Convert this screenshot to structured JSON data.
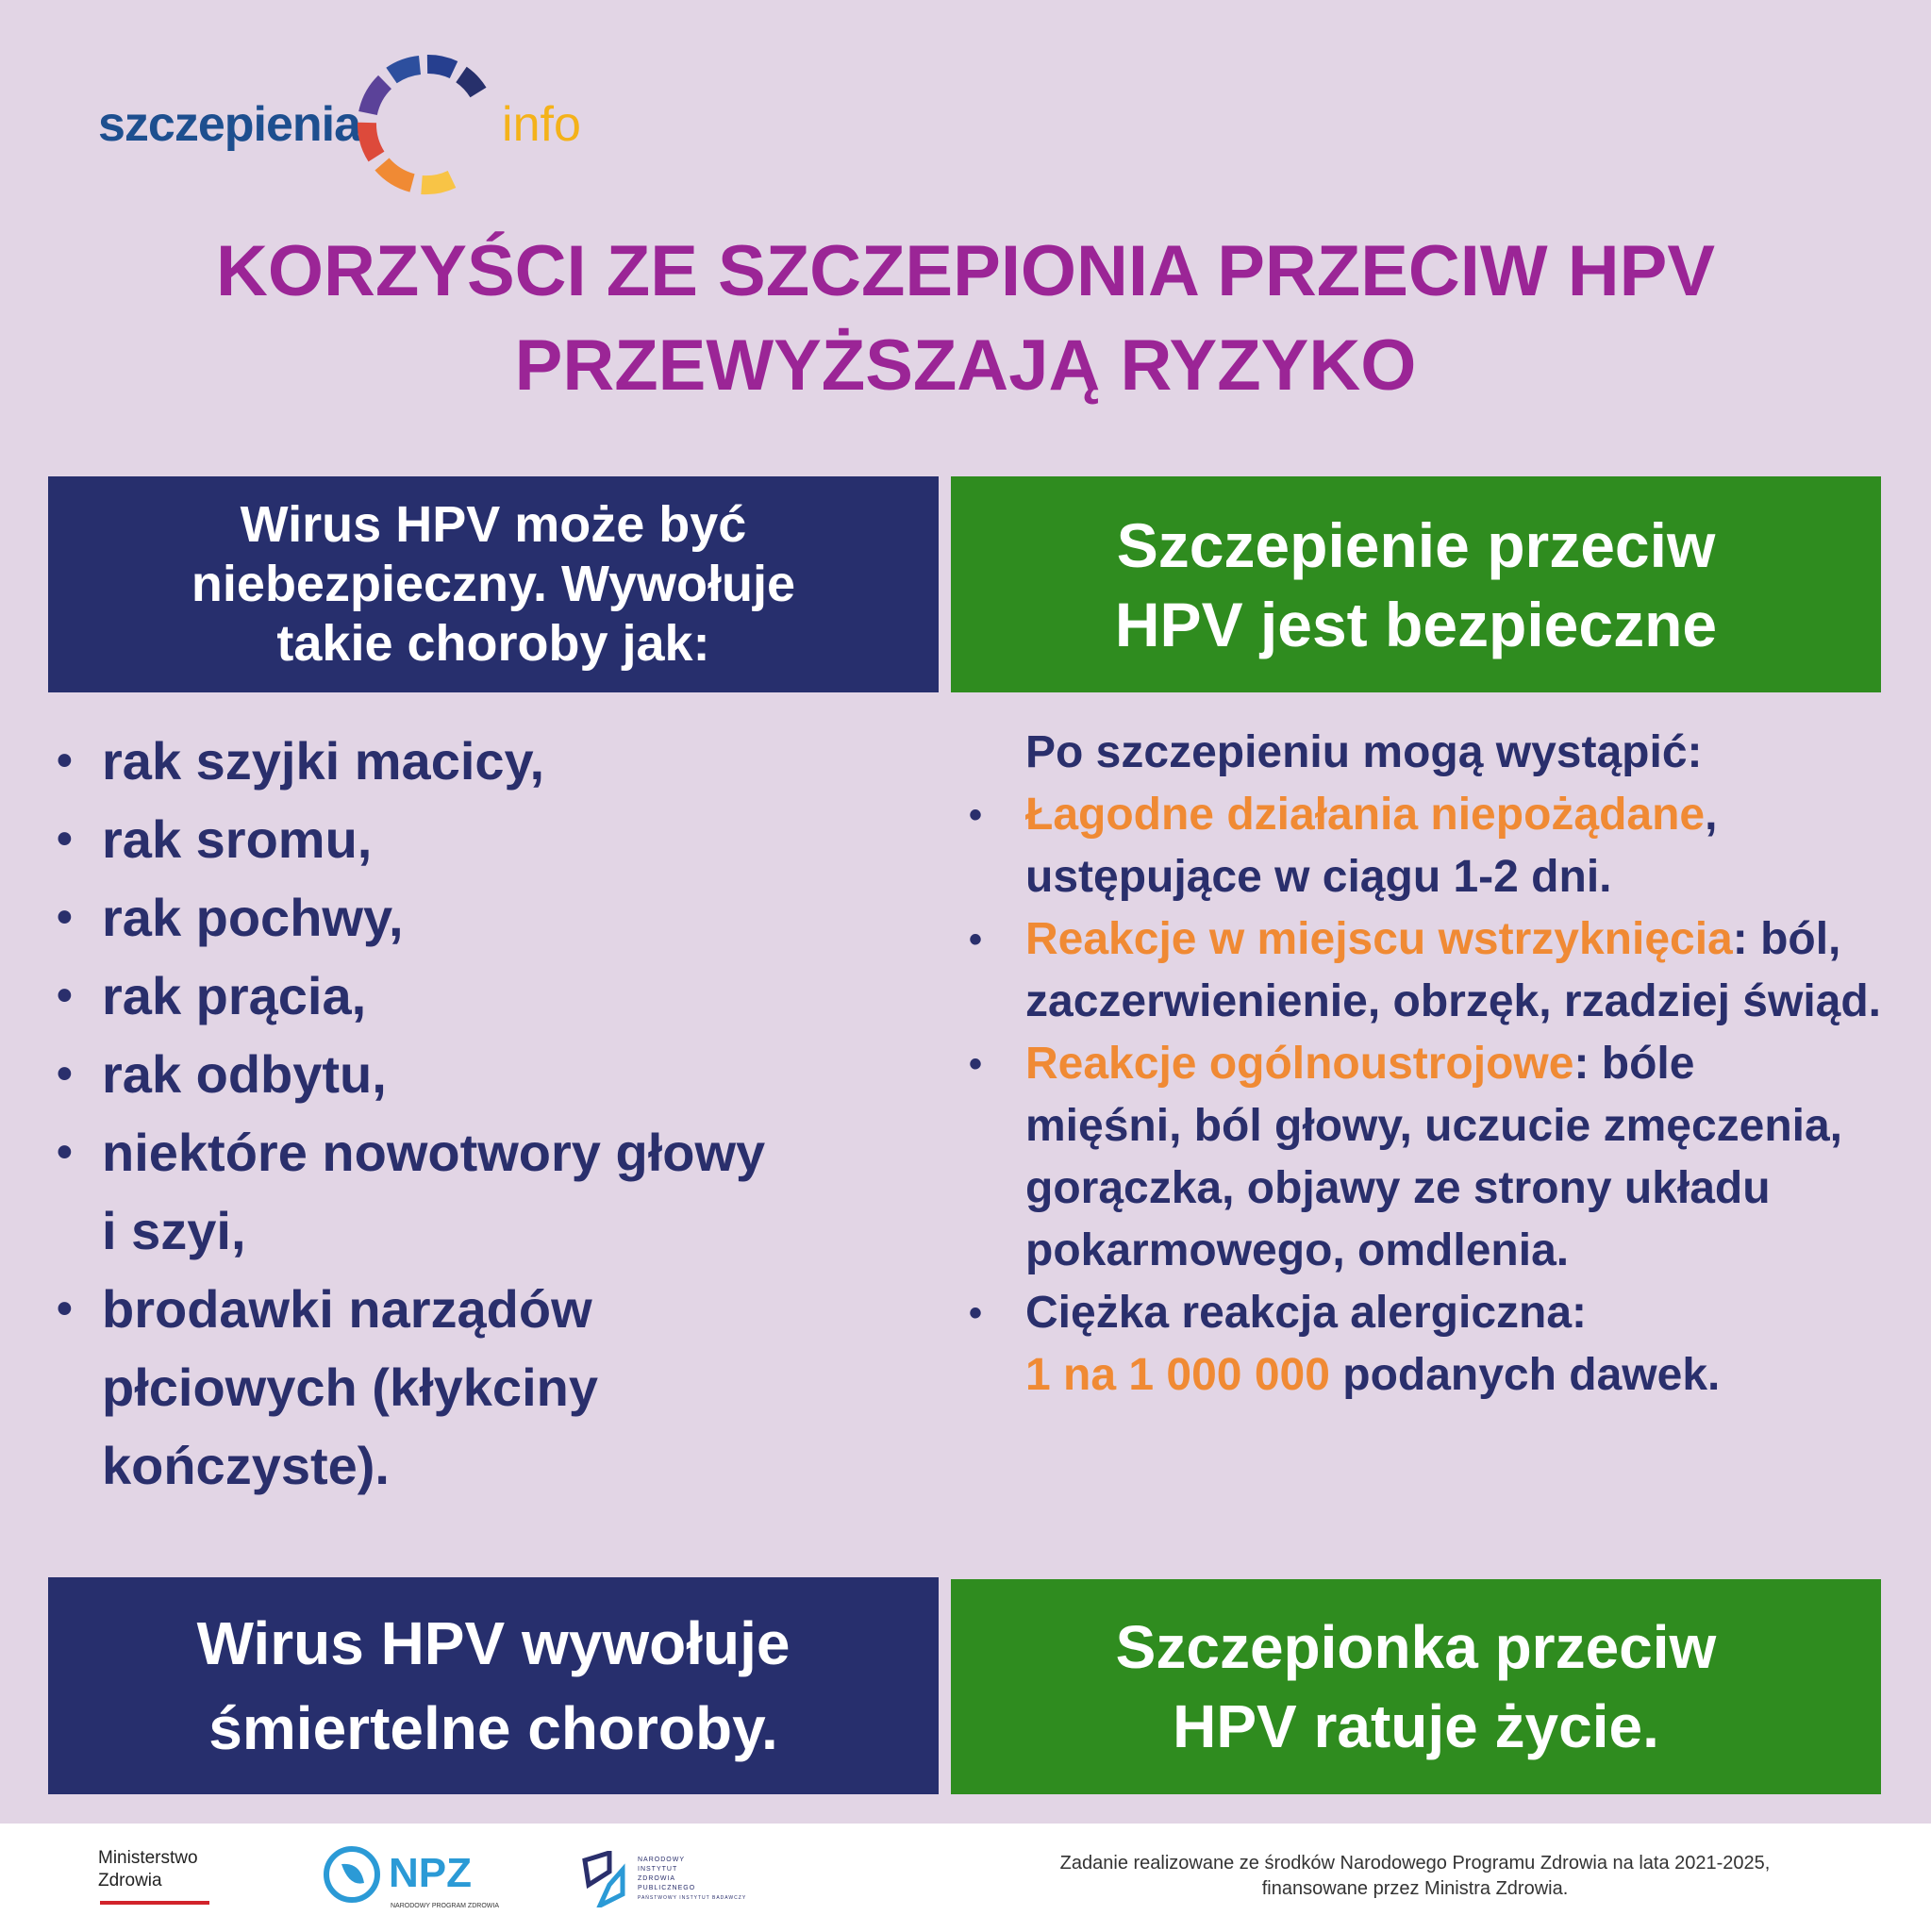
{
  "logo": {
    "word": "szczepienia",
    "suffix": "info"
  },
  "title": {
    "line1": "KORZYŚCI ZE SZCZEPIONIA PRZECIW HPV",
    "line2": "PRZEWYŻSZAJĄ RYZYKO"
  },
  "left_header": {
    "line1": "Wirus HPV może być",
    "line2": "niebezpieczny. Wywołuje",
    "line3": "takie choroby jak:"
  },
  "right_header": {
    "line1": "Szczepienie przeciw",
    "line2": "HPV jest bezpieczne"
  },
  "diseases": [
    "rak szyjki macicy,",
    "rak sromu,",
    "rak pochwy,",
    "rak prącia,",
    "rak odbytu,",
    "niektóre nowotwory głowy i szyi,",
    "brodawki narządów płciowych (kłykciny kończyste)."
  ],
  "effects": {
    "intro": "Po szczepieniu mogą wystąpić:",
    "items": [
      {
        "highlight": "Łagodne działania niepożądane",
        "rest": ", ustępujące w ciągu 1-2 dni."
      },
      {
        "highlight": "Reakcje w miejscu wstrzyknięcia",
        "rest": ": ból, zaczerwienienie, obrzęk, rzadziej świąd."
      },
      {
        "highlight": "Reakcje ogólnoustrojowe",
        "rest": ": bóle mięśni, ból głowy, uczucie zmęczenia, gorączka, objawy ze strony układu pokarmowego, omdlenia."
      },
      {
        "lead": "Ciężka reakcja alergiczna:",
        "highlight": "1 na 1 000 000",
        "rest": " podanych dawek."
      }
    ]
  },
  "left_footer": {
    "line1": "Wirus HPV wywołuje",
    "line2": "śmiertelne choroby."
  },
  "right_footer": {
    "line1": "Szczepionka przeciw",
    "line2": "HPV ratuje życie."
  },
  "footer": {
    "ministry": {
      "line1": "Ministerstwo",
      "line2": "Zdrowia"
    },
    "npz": {
      "name": "NPZ",
      "sub": "NARODOWY PROGRAM ZDROWIA"
    },
    "nizp": {
      "lines": [
        "NARODOWY",
        "INSTYTUT",
        "ZDROWIA",
        "PUBLICZNEGO",
        "PAŃSTWOWY INSTYTUT BADAWCZY"
      ]
    },
    "note": {
      "line1": "Zadanie realizowane ze środków Narodowego Programu Zdrowia na lata 2021-2025,",
      "line2": "finansowane przez Ministra Zdrowia."
    }
  },
  "colors": {
    "background": "#e2d5e5",
    "navy": "#272f6d",
    "green": "#2f8c1f",
    "title": "#9b2596",
    "highlight": "#f08a34"
  }
}
